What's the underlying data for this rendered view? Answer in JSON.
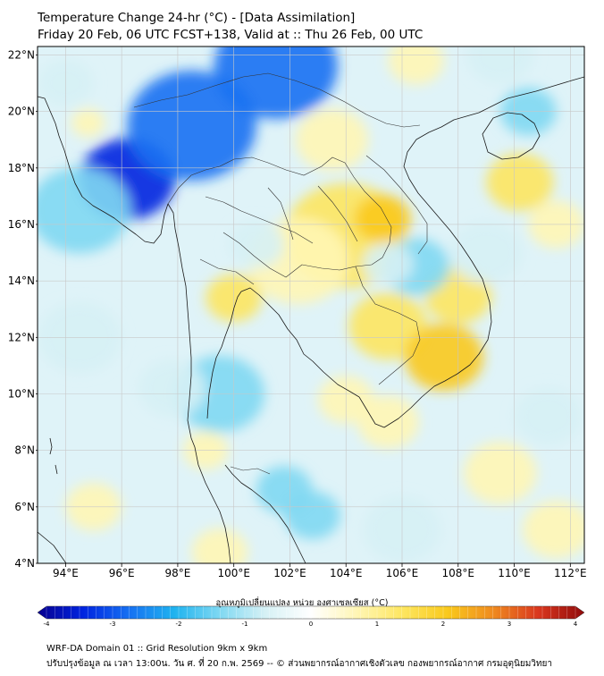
{
  "header": {
    "title": "Temperature Change 24-hr (°C) - [Data Assimilation]",
    "subtitle": "Friday 20 Feb, 06 UTC FCST+138, Valid at :: Thu 26 Feb, 00 UTC"
  },
  "map": {
    "lon_range": [
      93,
      112.5
    ],
    "lat_range": [
      4,
      22.3
    ],
    "lon_ticks": [
      94,
      96,
      98,
      100,
      102,
      104,
      106,
      108,
      110,
      112
    ],
    "lon_tick_labels": [
      "94°E",
      "96°E",
      "98°E",
      "100°E",
      "102°E",
      "104°E",
      "106°E",
      "108°E",
      "110°E",
      "112°E"
    ],
    "lat_ticks": [
      4,
      6,
      8,
      10,
      12,
      14,
      16,
      18,
      20,
      22
    ],
    "lat_tick_labels": [
      "4°N",
      "6°N",
      "8°N",
      "10°N",
      "12°N",
      "14°N",
      "16°N",
      "18°N",
      "20°N",
      "22°N"
    ],
    "field_anomalies": [
      {
        "lon": 96.2,
        "lat": 17.6,
        "value": -3.3,
        "radius_deg": 1.7
      },
      {
        "lon": 98.5,
        "lat": 19.5,
        "value": -2.6,
        "radius_deg": 2.3
      },
      {
        "lon": 101.5,
        "lat": 21.6,
        "value": -2.7,
        "radius_deg": 2.2
      },
      {
        "lon": 94.5,
        "lat": 16.5,
        "value": -1.4,
        "radius_deg": 1.8
      },
      {
        "lon": 104.0,
        "lat": 15.6,
        "value": 1.4,
        "radius_deg": 2.2
      },
      {
        "lon": 105.3,
        "lat": 16.2,
        "value": 2.0,
        "radius_deg": 1.0
      },
      {
        "lon": 102.3,
        "lat": 14.7,
        "value": 0.9,
        "radius_deg": 1.8
      },
      {
        "lon": 100.0,
        "lat": 13.4,
        "value": 1.0,
        "radius_deg": 1.0
      },
      {
        "lon": 105.5,
        "lat": 12.4,
        "value": 1.3,
        "radius_deg": 1.4
      },
      {
        "lon": 107.5,
        "lat": 11.3,
        "value": 2.0,
        "radius_deg": 1.4
      },
      {
        "lon": 108.0,
        "lat": 13.5,
        "value": 1.4,
        "radius_deg": 1.2
      },
      {
        "lon": 106.5,
        "lat": 14.5,
        "value": -1.4,
        "radius_deg": 1.2
      },
      {
        "lon": 105.5,
        "lat": 14.6,
        "value": -1.0,
        "radius_deg": 0.9
      },
      {
        "lon": 104.0,
        "lat": 9.8,
        "value": 0.9,
        "radius_deg": 1.0
      },
      {
        "lon": 105.5,
        "lat": 9.0,
        "value": 0.8,
        "radius_deg": 1.1
      },
      {
        "lon": 109.0,
        "lat": 15.0,
        "value": -0.9,
        "radius_deg": 1.3
      },
      {
        "lon": 110.2,
        "lat": 17.5,
        "value": 1.0,
        "radius_deg": 1.2
      },
      {
        "lon": 111.5,
        "lat": 16.0,
        "value": 0.8,
        "radius_deg": 1.0
      },
      {
        "lon": 103.5,
        "lat": 19.0,
        "value": 0.8,
        "radius_deg": 1.3
      },
      {
        "lon": 106.5,
        "lat": 21.8,
        "value": 0.6,
        "radius_deg": 1.0
      },
      {
        "lon": 110.5,
        "lat": 20.0,
        "value": -1.2,
        "radius_deg": 1.0
      },
      {
        "lon": 109.5,
        "lat": 22.0,
        "value": -0.8,
        "radius_deg": 1.2
      },
      {
        "lon": 99.5,
        "lat": 10.0,
        "value": -1.4,
        "radius_deg": 1.6
      },
      {
        "lon": 101.8,
        "lat": 6.6,
        "value": -1.6,
        "radius_deg": 1.0
      },
      {
        "lon": 102.8,
        "lat": 5.7,
        "value": -1.2,
        "radius_deg": 1.0
      },
      {
        "lon": 97.8,
        "lat": 10.2,
        "value": -0.9,
        "radius_deg": 1.2
      },
      {
        "lon": 94.5,
        "lat": 12.0,
        "value": -0.7,
        "radius_deg": 1.5
      },
      {
        "lon": 99.5,
        "lat": 4.4,
        "value": 0.8,
        "radius_deg": 1.0
      },
      {
        "lon": 106.0,
        "lat": 5.2,
        "value": -0.8,
        "radius_deg": 1.4
      },
      {
        "lon": 109.5,
        "lat": 7.2,
        "value": 0.6,
        "radius_deg": 1.3
      },
      {
        "lon": 111.2,
        "lat": 9.2,
        "value": -0.8,
        "radius_deg": 1.2
      },
      {
        "lon": 111.5,
        "lat": 5.2,
        "value": 0.9,
        "radius_deg": 1.2
      },
      {
        "lon": 95.0,
        "lat": 6.0,
        "value": 0.8,
        "radius_deg": 1.0
      },
      {
        "lon": 94.0,
        "lat": 21.0,
        "value": -0.8,
        "radius_deg": 1.0
      },
      {
        "lon": 94.8,
        "lat": 19.6,
        "value": 0.5,
        "radius_deg": 0.6
      },
      {
        "lon": 100.8,
        "lat": 15.3,
        "value": -0.6,
        "radius_deg": 1.0
      },
      {
        "lon": 99.0,
        "lat": 8.0,
        "value": 0.5,
        "radius_deg": 0.8
      }
    ]
  },
  "colorbar": {
    "label": "อุณหภูมิเปลี่ยนแปลง หน่วย องศาเซลเซียส (°C)",
    "min": -4,
    "max": 4,
    "ticks": [
      -4,
      -3,
      -2,
      -1,
      0,
      1,
      2,
      3,
      4
    ],
    "tick_labels": [
      "-4",
      "-3",
      "-2",
      "-1",
      "0",
      "1",
      "2",
      "3",
      "4"
    ],
    "colors": [
      "#08008f",
      "#0024e0",
      "#1670f2",
      "#1fb3ef",
      "#7fd8f2",
      "#d6f1f5",
      "#ffffff",
      "#fff6b5",
      "#fde661",
      "#f9c91c",
      "#ef8a1f",
      "#d9361e",
      "#900b0b"
    ]
  },
  "footer": {
    "line1": "WRF-DA Domain 01 :: Grid Resolution 9km x 9km",
    "line2": "ปรับปรุงข้อมูล ณ เวลา 13:00น. วัน ศ. ที่ 20 ก.พ. 2569 -- © ส่วนพยากรณ์อากาศเชิงตัวเลข กองพยากรณ์อากาศ กรมอุตุนิยมวิทยา"
  }
}
